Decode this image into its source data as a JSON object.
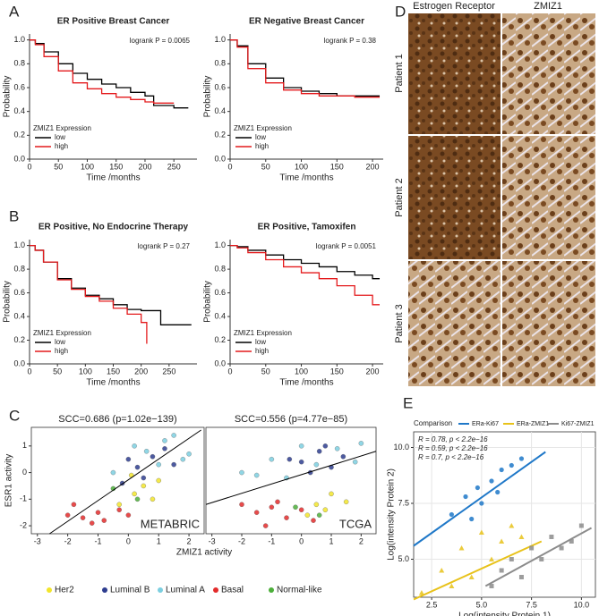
{
  "panel_labels": [
    "A",
    "B",
    "C",
    "D",
    "E"
  ],
  "histology": {
    "columns": [
      "Estrogen Receptor",
      "ZMIZ1"
    ],
    "rows": [
      "Patient 1",
      "Patient 2",
      "Patient 3"
    ]
  },
  "chart_data": [
    {
      "type": "line",
      "step": true,
      "title": "ER Positive Breast Cancer",
      "annotation": "logrank P = 0.0065",
      "xlabel": "Time /months",
      "ylabel": "Probability",
      "legend_title": "ZMIZ1 Expression",
      "x": [
        0,
        10,
        25,
        50,
        75,
        100,
        125,
        150,
        175,
        200,
        215,
        250,
        275
      ],
      "series": [
        {
          "name": "low",
          "color": "#000000",
          "values": [
            1,
            0.97,
            0.9,
            0.8,
            0.72,
            0.67,
            0.63,
            0.6,
            0.56,
            0.53,
            0.45,
            0.43,
            0.43
          ]
        },
        {
          "name": "high",
          "color": "#e41a1c",
          "values": [
            1,
            0.96,
            0.86,
            0.74,
            0.64,
            0.59,
            0.55,
            0.52,
            0.5,
            0.48,
            0.47,
            0.47,
            null
          ]
        }
      ],
      "xlim": [
        0,
        290
      ],
      "xticks": [
        0,
        50,
        100,
        150,
        200,
        250
      ],
      "ylim": [
        0,
        1.05
      ],
      "yticks": [
        {
          "value": 0,
          "label": "0.0"
        },
        0.2,
        0.4,
        0.6,
        0.8,
        {
          "value": 1,
          "label": "1.0"
        }
      ]
    },
    {
      "type": "line",
      "step": true,
      "title": "ER Negative Breast Cancer",
      "annotation": "logrank P = 0.38",
      "xlabel": "Time /months",
      "ylabel": "Probability",
      "legend_title": "ZMIZ1 Expression",
      "x": [
        0,
        10,
        25,
        50,
        75,
        100,
        125,
        150,
        175,
        200,
        210
      ],
      "series": [
        {
          "name": "low",
          "color": "#000000",
          "values": [
            1,
            0.95,
            0.8,
            0.68,
            0.6,
            0.57,
            0.55,
            0.53,
            0.53,
            0.53,
            0.53
          ]
        },
        {
          "name": "high",
          "color": "#e41a1c",
          "values": [
            1,
            0.94,
            0.76,
            0.64,
            0.58,
            0.55,
            0.53,
            0.53,
            0.52,
            0.52,
            0.52
          ]
        }
      ],
      "xlim": [
        0,
        215
      ],
      "xticks": [
        0,
        50,
        100,
        150,
        200
      ],
      "ylim": [
        0,
        1.05
      ],
      "yticks": [
        {
          "value": 0,
          "label": "0.0"
        },
        0.2,
        0.4,
        0.6,
        0.8,
        {
          "value": 1,
          "label": "1.0"
        }
      ]
    },
    {
      "type": "line",
      "step": true,
      "title": "ER Positive, No Endocrine Therapy",
      "annotation": "logrank P = 0.27",
      "xlabel": "Time /months",
      "ylabel": "Probability",
      "legend_title": "ZMIZ1 Expression",
      "x": [
        0,
        10,
        25,
        50,
        75,
        100,
        125,
        150,
        175,
        200,
        210,
        225,
        235,
        250,
        290
      ],
      "series": [
        {
          "name": "low",
          "color": "#000000",
          "values": [
            1,
            0.96,
            0.86,
            0.72,
            0.64,
            0.58,
            0.55,
            0.5,
            0.46,
            0.45,
            0.45,
            0.45,
            0.33,
            0.33,
            0.33
          ]
        },
        {
          "name": "high",
          "color": "#e41a1c",
          "values": [
            1,
            0.96,
            0.86,
            0.71,
            0.63,
            0.57,
            0.53,
            0.47,
            0.42,
            0.35,
            0.17,
            null,
            null,
            null,
            null
          ]
        }
      ],
      "xlim": [
        0,
        300
      ],
      "xticks": [
        0,
        50,
        100,
        150,
        200,
        250
      ],
      "ylim": [
        0,
        1.05
      ],
      "yticks": [
        {
          "value": 0,
          "label": "0.0"
        },
        0.2,
        0.4,
        0.6,
        0.8,
        {
          "value": 1,
          "label": "1.0"
        }
      ]
    },
    {
      "type": "line",
      "step": true,
      "title": "ER Positive, Tamoxifen",
      "annotation": "logrank P = 0.0051",
      "xlabel": "Time /months",
      "ylabel": "Probability",
      "legend_title": "ZMIZ1 Expression",
      "x": [
        0,
        10,
        25,
        50,
        75,
        100,
        125,
        150,
        175,
        200,
        210
      ],
      "series": [
        {
          "name": "low",
          "color": "#000000",
          "values": [
            1,
            0.99,
            0.96,
            0.92,
            0.88,
            0.85,
            0.82,
            0.78,
            0.75,
            0.72,
            0.72
          ]
        },
        {
          "name": "high",
          "color": "#e41a1c",
          "values": [
            1,
            0.98,
            0.94,
            0.88,
            0.82,
            0.77,
            0.72,
            0.66,
            0.58,
            0.5,
            0.5
          ]
        }
      ],
      "xlim": [
        0,
        215
      ],
      "xticks": [
        0,
        50,
        100,
        150,
        200
      ],
      "ylim": [
        0,
        1.05
      ],
      "yticks": [
        {
          "value": 0,
          "label": "0.0"
        },
        0.2,
        0.4,
        0.6,
        0.8,
        {
          "value": 1,
          "label": "1.0"
        }
      ]
    },
    {
      "type": "scatter",
      "frame": true,
      "title": "SCC=0.686 (p=1.02e−139)",
      "label": "METABRIC",
      "ylabel": "ESR1 activity",
      "xlim": [
        -3.2,
        2.5
      ],
      "xticks": [
        -3,
        -2,
        -1,
        0,
        1,
        2
      ],
      "ylim": [
        -2.3,
        1.7
      ],
      "yticks": [
        -2,
        -1,
        0,
        1
      ],
      "trend": {
        "x": [
          -2.6,
          2.4
        ],
        "y": [
          -2.3,
          1.6
        ]
      },
      "series": [
        {
          "name": "Her2",
          "color": "#f2e52b",
          "x": [
            0.2,
            0.5,
            -0.3,
            1.0,
            0.8,
            0.1
          ],
          "y": [
            -0.8,
            -0.5,
            -1.2,
            -0.3,
            -1.0,
            -0.1
          ]
        },
        {
          "name": "Luminal B",
          "color": "#2e3d8f",
          "x": [
            0.3,
            0.8,
            -0.2,
            1.2,
            0.5,
            1.5,
            0.0
          ],
          "y": [
            0.2,
            0.6,
            -0.4,
            0.9,
            -0.2,
            0.3,
            0.5
          ]
        },
        {
          "name": "Luminal A",
          "color": "#7ccfe0",
          "x": [
            0.6,
            1.2,
            1.8,
            -0.5,
            1.0,
            0.2,
            1.5,
            2.0
          ],
          "y": [
            0.8,
            1.2,
            0.5,
            0.0,
            0.3,
            1.0,
            1.4,
            0.7
          ]
        },
        {
          "name": "Basal",
          "color": "#e32b2b",
          "x": [
            -2.0,
            -1.5,
            -1.0,
            -0.8,
            -0.3,
            -1.8,
            -1.2,
            0.0
          ],
          "y": [
            -1.6,
            -1.7,
            -1.5,
            -1.8,
            -1.4,
            -1.2,
            -1.9,
            -1.6
          ]
        },
        {
          "name": "Normal-like",
          "color": "#4caf3a",
          "x": [
            -0.5,
            0.3
          ],
          "y": [
            -0.6,
            -1.0
          ]
        }
      ]
    },
    {
      "type": "scatter",
      "frame": true,
      "title": "SCC=0.556 (p=4.77e−85)",
      "label": "TCGA",
      "xlabel": "ZMIZ1 activity",
      "xlim": [
        -3.2,
        2.5
      ],
      "xticks": [
        -3,
        -2,
        -1,
        0,
        1,
        2
      ],
      "ylim": [
        -2.3,
        1.7
      ],
      "trend": {
        "x": [
          -3.2,
          2.5
        ],
        "y": [
          -1.2,
          0.8
        ]
      },
      "series": [
        {
          "name": "Her2",
          "color": "#f2e52b",
          "x": [
            0.5,
            1.0,
            0.2,
            1.5,
            0.8
          ],
          "y": [
            -1.2,
            -0.8,
            -1.6,
            -1.1,
            -1.4
          ]
        },
        {
          "name": "Luminal B",
          "color": "#2e3d8f",
          "x": [
            0.0,
            0.6,
            1.0,
            -0.4,
            1.4,
            0.3,
            0.8
          ],
          "y": [
            0.4,
            0.8,
            0.2,
            0.5,
            0.6,
            0.0,
            1.0
          ]
        },
        {
          "name": "Luminal A",
          "color": "#7ccfe0",
          "x": [
            -2.0,
            -1.0,
            0.0,
            0.5,
            1.2,
            1.8,
            -0.5,
            2.0,
            -1.5
          ],
          "y": [
            0.0,
            0.5,
            1.0,
            0.3,
            0.9,
            0.4,
            -0.2,
            1.1,
            -0.1
          ]
        },
        {
          "name": "Basal",
          "color": "#e32b2b",
          "x": [
            -2.0,
            -1.5,
            -1.0,
            -0.5,
            0.0,
            -1.2,
            -0.8,
            0.4
          ],
          "y": [
            -1.2,
            -1.5,
            -1.3,
            -1.7,
            -1.4,
            -2.0,
            -1.1,
            -1.8
          ]
        },
        {
          "name": "Normal-like",
          "color": "#4caf3a",
          "x": [
            -0.2,
            0.6
          ],
          "y": [
            -1.3,
            -1.6
          ]
        }
      ]
    },
    {
      "type": "scatter",
      "frame": true,
      "grid": true,
      "legend_title": "Comparison",
      "xlabel": "Log(intensity Protein 1)",
      "ylabel": "Log(intensity Protein 2)",
      "xlim": [
        1.6,
        10.7
      ],
      "xticks": [
        2.5,
        {
          "value": 5,
          "label": "5.0"
        },
        7.5,
        {
          "value": 10,
          "label": "10.0"
        }
      ],
      "ylim": [
        3.3,
        10.7
      ],
      "yticks": [
        {
          "value": 5,
          "label": "5.0"
        },
        7.5,
        {
          "value": 10,
          "label": "10.0"
        }
      ],
      "series": [
        {
          "name": "ERa-Ki67",
          "color": "#1f78c8",
          "marker": "circle",
          "stat": "R = 0.78, p < 2.2e−16",
          "x": [
            3.5,
            4.2,
            4.8,
            5.0,
            5.5,
            6.0,
            6.5,
            7.0,
            4.5,
            5.8
          ],
          "y": [
            7.0,
            7.8,
            8.2,
            7.5,
            8.5,
            9.0,
            9.2,
            9.5,
            6.8,
            8.0
          ],
          "trend": {
            "x": [
              1.6,
              8.2
            ],
            "y": [
              5.6,
              9.8
            ]
          }
        },
        {
          "name": "ERa-ZMIZ1",
          "color": "#e8c21a",
          "marker": "triangle",
          "stat": "R = 0.59, p < 2.2e−16",
          "x": [
            2.0,
            3.0,
            4.0,
            4.5,
            5.0,
            5.5,
            6.0,
            7.0,
            3.5,
            6.5
          ],
          "y": [
            3.5,
            4.5,
            5.5,
            4.2,
            6.2,
            5.0,
            5.8,
            6.0,
            3.8,
            6.5
          ],
          "trend": {
            "x": [
              1.6,
              8.0
            ],
            "y": [
              3.2,
              5.8
            ]
          }
        },
        {
          "name": "Ki67-ZMIZ1",
          "color": "#8c8c8c",
          "marker": "square",
          "stat": "R = 0.7, p < 2.2e−16",
          "x": [
            5.5,
            6.0,
            6.5,
            7.0,
            7.5,
            8.0,
            8.5,
            9.0,
            9.5,
            10.0
          ],
          "y": [
            3.8,
            4.5,
            5.0,
            4.2,
            5.5,
            5.0,
            6.0,
            5.5,
            5.8,
            6.5
          ],
          "trend": {
            "x": [
              5.2,
              10.5
            ],
            "y": [
              3.8,
              6.4
            ]
          }
        }
      ]
    }
  ]
}
